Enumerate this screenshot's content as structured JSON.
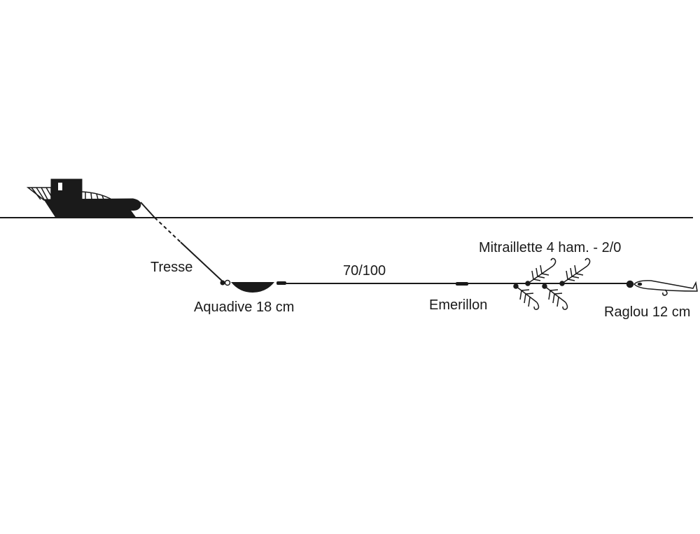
{
  "labels": {
    "tresse": "Tresse",
    "aquadive": "Aquadive 18 cm",
    "line": "70/100",
    "emerillon": "Emerillon",
    "mitraillette": "Mitraillette 4 ham. - 2/0",
    "raglou": "Raglou 12 cm"
  },
  "colors": {
    "ink": "#1a1a1a",
    "background": "#ffffff"
  }
}
